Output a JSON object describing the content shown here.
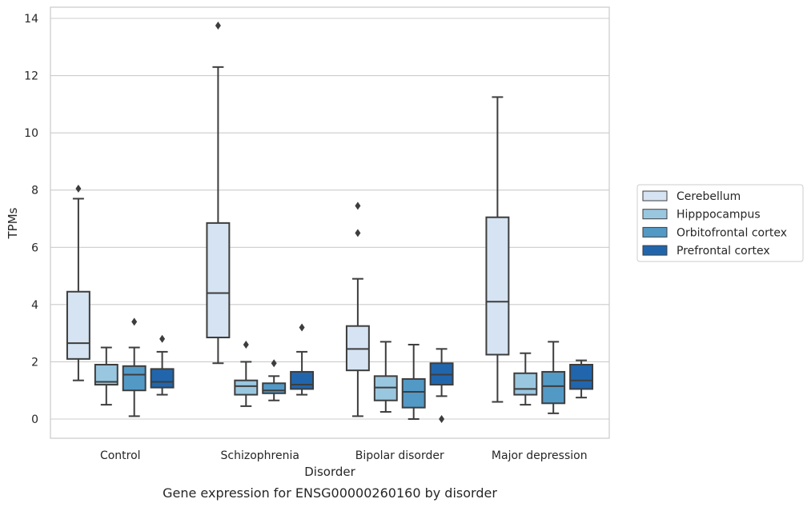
{
  "chart_data": {
    "type": "box",
    "xlabel": "Disorder",
    "ylabel": "TPMs",
    "caption": "Gene expression for ENSG00000260160 by disorder",
    "ylim": [
      -0.65,
      14.4
    ],
    "yticks": [
      0,
      2,
      4,
      6,
      8,
      10,
      12,
      14
    ],
    "grid": true,
    "legend_position": "right",
    "categories": [
      "Control",
      "Schizophrenia",
      "Bipolar disorder",
      "Major depression"
    ],
    "series": [
      {
        "name": "Cerebellum",
        "color": "#d5e3f2",
        "boxes": [
          {
            "whislo": 1.35,
            "q1": 2.1,
            "med": 2.65,
            "q3": 4.45,
            "whishi": 7.7,
            "fliers": [
              8.05
            ]
          },
          {
            "whislo": 1.95,
            "q1": 2.85,
            "med": 4.4,
            "q3": 6.85,
            "whishi": 12.3,
            "fliers": [
              13.75
            ]
          },
          {
            "whislo": 0.1,
            "q1": 1.7,
            "med": 2.45,
            "q3": 3.25,
            "whishi": 4.9,
            "fliers": [
              6.5,
              7.45
            ]
          },
          {
            "whislo": 0.6,
            "q1": 2.25,
            "med": 4.1,
            "q3": 7.05,
            "whishi": 11.25,
            "fliers": []
          }
        ]
      },
      {
        "name": "Hipppocampus",
        "color": "#9ac7e0",
        "boxes": [
          {
            "whislo": 0.5,
            "q1": 1.2,
            "med": 1.3,
            "q3": 1.9,
            "whishi": 2.5,
            "fliers": []
          },
          {
            "whislo": 0.45,
            "q1": 0.85,
            "med": 1.15,
            "q3": 1.35,
            "whishi": 2.0,
            "fliers": [
              2.6
            ]
          },
          {
            "whislo": 0.25,
            "q1": 0.65,
            "med": 1.1,
            "q3": 1.5,
            "whishi": 2.7,
            "fliers": []
          },
          {
            "whislo": 0.5,
            "q1": 0.85,
            "med": 1.05,
            "q3": 1.6,
            "whishi": 2.3,
            "fliers": []
          }
        ]
      },
      {
        "name": "Orbitofrontal cortex",
        "color": "#5399c6",
        "boxes": [
          {
            "whislo": 0.1,
            "q1": 1.0,
            "med": 1.55,
            "q3": 1.85,
            "whishi": 2.5,
            "fliers": [
              3.4
            ]
          },
          {
            "whislo": 0.65,
            "q1": 0.9,
            "med": 1.0,
            "q3": 1.25,
            "whishi": 1.5,
            "fliers": [
              1.95
            ]
          },
          {
            "whislo": 0.0,
            "q1": 0.4,
            "med": 0.95,
            "q3": 1.4,
            "whishi": 2.6,
            "fliers": []
          },
          {
            "whislo": 0.2,
            "q1": 0.55,
            "med": 1.15,
            "q3": 1.65,
            "whishi": 2.7,
            "fliers": []
          }
        ]
      },
      {
        "name": "Prefrontal cortex",
        "color": "#2166ac",
        "boxes": [
          {
            "whislo": 0.85,
            "q1": 1.1,
            "med": 1.3,
            "q3": 1.75,
            "whishi": 2.35,
            "fliers": [
              2.8
            ]
          },
          {
            "whislo": 0.85,
            "q1": 1.05,
            "med": 1.2,
            "q3": 1.65,
            "whishi": 2.35,
            "fliers": [
              3.2
            ]
          },
          {
            "whislo": 0.8,
            "q1": 1.2,
            "med": 1.55,
            "q3": 1.95,
            "whishi": 2.45,
            "fliers": [
              0.0
            ]
          },
          {
            "whislo": 0.75,
            "q1": 1.05,
            "med": 1.35,
            "q3": 1.9,
            "whishi": 2.05,
            "fliers": []
          }
        ]
      }
    ]
  }
}
